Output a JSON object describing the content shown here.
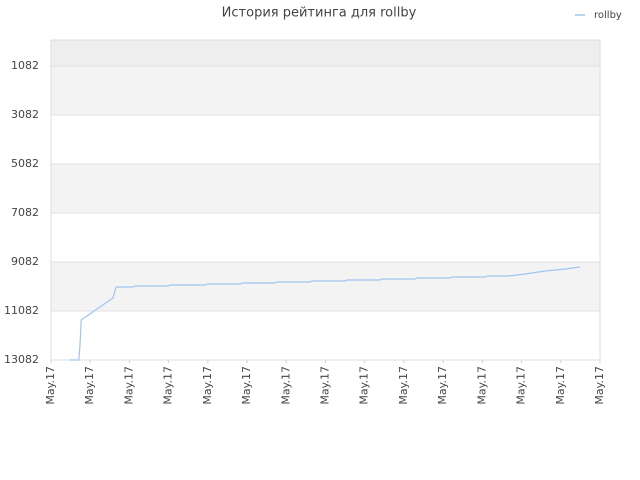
{
  "chart_data": {
    "type": "line",
    "title": "История рейтинга для rollby",
    "x": [
      0.48,
      0.71,
      0.74,
      0.77,
      1.58,
      1.66,
      2.09,
      2.14,
      2.98,
      3.03,
      3.93,
      3.98,
      4.82,
      4.87,
      5.71,
      5.77,
      6.61,
      6.66,
      7.5,
      7.55,
      8.39,
      8.44,
      9.29,
      9.34,
      10.18,
      10.23,
      11.07,
      11.12,
      11.66,
      12.09,
      12.6,
      13.11,
      13.49
    ],
    "series": [
      {
        "name": "rollby",
        "color": "#9fc5ef",
        "values": [
          13082,
          13082,
          12470,
          11449,
          10551,
          10102,
          10102,
          10061,
          10061,
          10020,
          10020,
          9980,
          9980,
          9939,
          9939,
          9898,
          9898,
          9857,
          9857,
          9816,
          9816,
          9776,
          9776,
          9735,
          9735,
          9694,
          9694,
          9653,
          9653,
          9572,
          9449,
          9367,
          9286
        ]
      }
    ],
    "xlim": [
      0,
      14
    ],
    "xticks": [
      {
        "value": 0,
        "label": "May.17"
      },
      {
        "value": 1,
        "label": "May.17"
      },
      {
        "value": 2,
        "label": "May.17"
      },
      {
        "value": 3,
        "label": "May.17"
      },
      {
        "value": 4,
        "label": "May.17"
      },
      {
        "value": 5,
        "label": "May.17"
      },
      {
        "value": 6,
        "label": "May.17"
      },
      {
        "value": 7,
        "label": "May.17"
      },
      {
        "value": 8,
        "label": "May.17"
      },
      {
        "value": 9,
        "label": "May.17"
      },
      {
        "value": 10,
        "label": "May.17"
      },
      {
        "value": 11,
        "label": "May.17"
      },
      {
        "value": 12,
        "label": "May.17"
      },
      {
        "value": 13,
        "label": "May.17"
      },
      {
        "value": 14,
        "label": "May.17"
      }
    ],
    "ylim": [
      13082,
      21
    ],
    "yticks": [
      1082,
      3082,
      5082,
      7082,
      9082,
      11082,
      13082
    ],
    "grid": true,
    "legend": "top-right"
  }
}
